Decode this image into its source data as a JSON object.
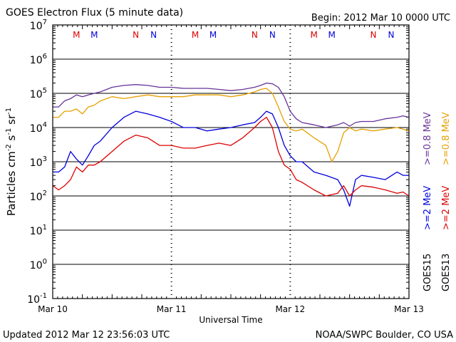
{
  "header": {
    "title": "GOES Electron Flux (5 minute data)",
    "begin": "Begin: 2012 Mar 10 0000 UTC"
  },
  "footer": {
    "updated": "Updated 2012 Mar 12 23:56:03 UTC",
    "credit": "NOAA/SWPC Boulder, CO USA"
  },
  "chart_data": {
    "type": "line",
    "title": "GOES Electron Flux (5 minute data)",
    "xlabel": "Universal Time",
    "ylabel": "Particles cm-2 s-1 sr-1",
    "ylabel_parts": {
      "base": "Particles cm",
      "e1": "-2",
      "mid1": "s",
      "e2": "-1",
      "mid2": "sr",
      "e3": "-1"
    },
    "yscale": "log",
    "ylim": [
      0.1,
      10000000
    ],
    "xlim": [
      0,
      3
    ],
    "x_unit": "days since 2012 Mar 10 00:00 UTC",
    "x_ticks": [
      {
        "x": 0,
        "label": "Mar 10"
      },
      {
        "x": 1,
        "label": "Mar 11"
      },
      {
        "x": 2,
        "label": "Mar 12"
      },
      {
        "x": 3,
        "label": "Mar 13"
      }
    ],
    "y_ticks": [
      {
        "base": "10",
        "exp": "-1",
        "value": 0.1
      },
      {
        "base": "10",
        "exp": "0",
        "value": 1
      },
      {
        "base": "10",
        "exp": "1",
        "value": 10
      },
      {
        "base": "10",
        "exp": "2",
        "value": 100
      },
      {
        "base": "10",
        "exp": "3",
        "value": 1000
      },
      {
        "base": "10",
        "exp": "4",
        "value": 10000
      },
      {
        "base": "10",
        "exp": "5",
        "value": 100000
      },
      {
        "base": "10",
        "exp": "6",
        "value": 1000000
      },
      {
        "base": "10",
        "exp": "7",
        "value": 10000000
      }
    ],
    "threshold": {
      "value": 1000,
      "style": "dashed"
    },
    "markers": [
      {
        "x": 0.2,
        "label": "M",
        "color": "#dd0000"
      },
      {
        "x": 0.35,
        "label": "M",
        "color": "#0000dd"
      },
      {
        "x": 0.7,
        "label": "N",
        "color": "#dd0000"
      },
      {
        "x": 0.85,
        "label": "N",
        "color": "#0000dd"
      },
      {
        "x": 1.2,
        "label": "M",
        "color": "#dd0000"
      },
      {
        "x": 1.35,
        "label": "M",
        "color": "#0000dd"
      },
      {
        "x": 1.7,
        "label": "N",
        "color": "#dd0000"
      },
      {
        "x": 1.85,
        "label": "N",
        "color": "#0000dd"
      },
      {
        "x": 2.2,
        "label": "M",
        "color": "#dd0000"
      },
      {
        "x": 2.35,
        "label": "M",
        "color": "#0000dd"
      },
      {
        "x": 2.7,
        "label": "N",
        "color": "#dd0000"
      },
      {
        "x": 2.85,
        "label": "N",
        "color": "#0000dd"
      }
    ],
    "legend": {
      "placement": "right",
      "satellites": [
        "GOES15",
        "GOES13"
      ],
      "entries": [
        {
          "label": ">=0.8 MeV",
          "color": "#663399"
        },
        {
          "label": ">=0.8 MeV",
          "color": "#e6a000"
        },
        {
          "label": ">=2 MeV",
          "color": "#0000dd"
        },
        {
          "label": ">=2 MeV",
          "color": "#dd0000"
        }
      ]
    },
    "series": [
      {
        "name": "GOES15 >=0.8 MeV",
        "color": "#663399",
        "x": [
          0,
          0.05,
          0.1,
          0.15,
          0.2,
          0.25,
          0.3,
          0.35,
          0.4,
          0.5,
          0.6,
          0.7,
          0.8,
          0.9,
          1.0,
          1.1,
          1.2,
          1.3,
          1.4,
          1.5,
          1.6,
          1.7,
          1.75,
          1.8,
          1.85,
          1.9,
          1.95,
          2.0,
          2.05,
          2.1,
          2.2,
          2.3,
          2.4,
          2.45,
          2.5,
          2.55,
          2.6,
          2.7,
          2.8,
          2.9,
          2.95,
          3.0
        ],
        "y": [
          40000,
          40000,
          60000,
          70000,
          90000,
          80000,
          90000,
          100000,
          110000,
          150000,
          170000,
          180000,
          170000,
          150000,
          150000,
          140000,
          140000,
          140000,
          130000,
          120000,
          130000,
          150000,
          170000,
          200000,
          190000,
          150000,
          80000,
          30000,
          18000,
          14000,
          12000,
          10000,
          12000,
          14000,
          11000,
          14000,
          15000,
          15000,
          18000,
          20000,
          22000,
          20000
        ]
      },
      {
        "name": "GOES13 >=0.8 MeV",
        "color": "#e6a000",
        "x": [
          0,
          0.05,
          0.1,
          0.15,
          0.2,
          0.25,
          0.3,
          0.35,
          0.4,
          0.5,
          0.6,
          0.7,
          0.8,
          0.9,
          1.0,
          1.1,
          1.2,
          1.3,
          1.4,
          1.5,
          1.6,
          1.7,
          1.75,
          1.8,
          1.85,
          1.9,
          1.95,
          2.0,
          2.05,
          2.1,
          2.2,
          2.3,
          2.35,
          2.4,
          2.45,
          2.5,
          2.55,
          2.6,
          2.7,
          2.8,
          2.9,
          2.95,
          3.0
        ],
        "y": [
          20000,
          20000,
          30000,
          30000,
          35000,
          25000,
          40000,
          45000,
          60000,
          80000,
          70000,
          80000,
          90000,
          80000,
          80000,
          80000,
          90000,
          90000,
          90000,
          80000,
          90000,
          110000,
          130000,
          140000,
          100000,
          40000,
          15000,
          9000,
          8000,
          9000,
          5000,
          3000,
          1000,
          2000,
          7000,
          10000,
          8000,
          9000,
          8000,
          9000,
          10000,
          9000,
          8000
        ]
      },
      {
        "name": "GOES15 >=2 MeV",
        "color": "#0000dd",
        "x": [
          0,
          0.05,
          0.1,
          0.15,
          0.2,
          0.25,
          0.3,
          0.35,
          0.4,
          0.5,
          0.6,
          0.7,
          0.8,
          0.9,
          1.0,
          1.1,
          1.2,
          1.3,
          1.4,
          1.5,
          1.6,
          1.7,
          1.75,
          1.8,
          1.85,
          1.9,
          1.95,
          2.0,
          2.05,
          2.1,
          2.2,
          2.3,
          2.4,
          2.45,
          2.5,
          2.55,
          2.6,
          2.7,
          2.8,
          2.9,
          2.95,
          3.0
        ],
        "y": [
          500,
          500,
          700,
          2000,
          1200,
          800,
          1500,
          3000,
          4000,
          10000,
          20000,
          30000,
          25000,
          20000,
          15000,
          10000,
          10000,
          8000,
          9000,
          10000,
          12000,
          14000,
          20000,
          30000,
          25000,
          10000,
          3000,
          1500,
          1000,
          1000,
          500,
          400,
          300,
          150,
          50,
          300,
          400,
          350,
          300,
          500,
          400,
          400
        ]
      },
      {
        "name": "GOES13 >=2 MeV",
        "color": "#dd0000",
        "x": [
          0,
          0.05,
          0.1,
          0.15,
          0.2,
          0.25,
          0.3,
          0.35,
          0.4,
          0.5,
          0.6,
          0.7,
          0.8,
          0.9,
          1.0,
          1.1,
          1.2,
          1.3,
          1.4,
          1.5,
          1.6,
          1.7,
          1.75,
          1.8,
          1.85,
          1.9,
          1.95,
          2.0,
          2.05,
          2.1,
          2.2,
          2.3,
          2.4,
          2.45,
          2.5,
          2.55,
          2.6,
          2.7,
          2.8,
          2.9,
          2.95,
          3.0
        ],
        "y": [
          200,
          150,
          200,
          300,
          700,
          500,
          800,
          800,
          1000,
          2000,
          4000,
          6000,
          5000,
          3000,
          3000,
          2500,
          2500,
          3000,
          3500,
          3000,
          5000,
          10000,
          15000,
          20000,
          10000,
          2000,
          800,
          600,
          300,
          250,
          150,
          100,
          120,
          200,
          100,
          150,
          200,
          180,
          150,
          120,
          130,
          100
        ]
      }
    ]
  }
}
